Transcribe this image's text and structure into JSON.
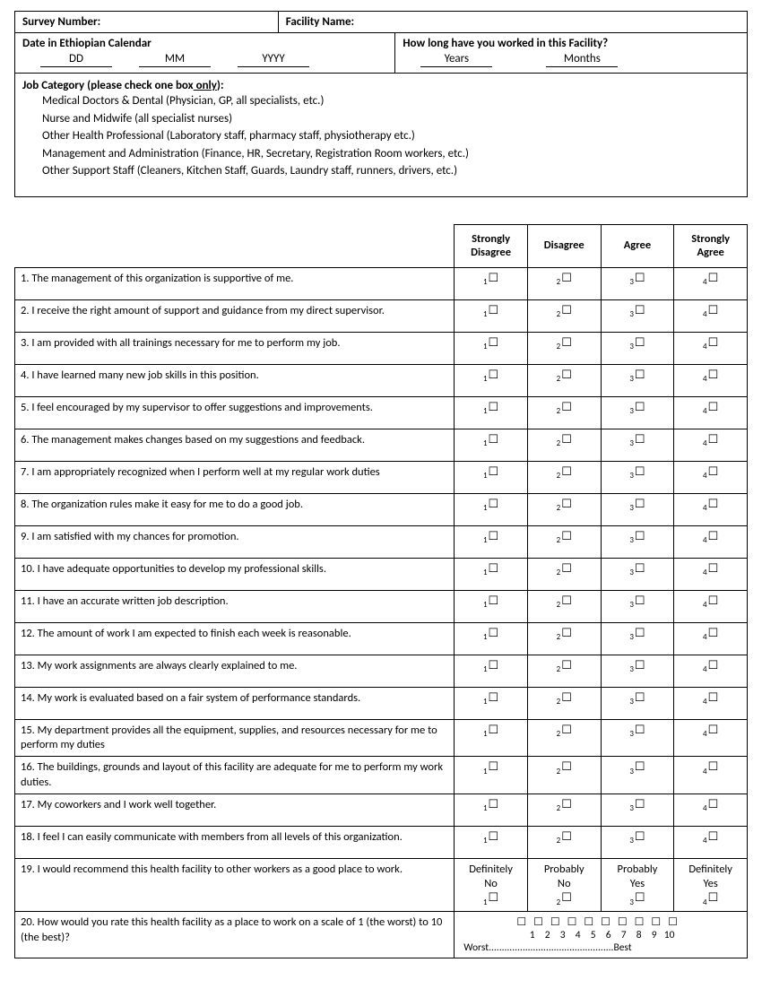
{
  "header": {
    "survey_number_label": "Survey Number:",
    "facility_name_label": "Facility Name:",
    "date_label": "Date in Ethiopian Calendar",
    "dd": "DD",
    "mm": "MM",
    "yyyy": "YYYY",
    "work_label": "How long have you worked in this Facility?",
    "years": "Years",
    "months": "Months",
    "job_category_prefix": "Job Category  (please check one box",
    "job_category_only": " only",
    "job_category_suffix": "):",
    "job_options": [
      "Medical Doctors & Dental (Physician, GP, all specialists, etc.)",
      "Nurse and Midwife (all specialist nurses)",
      "Other Health Professional (Laboratory staff, pharmacy staff, physiotherapy etc.)",
      "Management and Administration (Finance, HR, Secretary, Registration Room workers, etc.)",
      "Other Support Staff (Cleaners, Kitchen Staff, Guards, Laundry staff, runners, drivers, etc.)"
    ]
  },
  "columns": [
    "Strongly Disagree",
    "Disagree",
    "Agree",
    "Strongly Agree"
  ],
  "questions": [
    "1. The management of this organization is supportive of me.",
    "2. I receive the right amount of support and guidance from my direct supervisor.",
    "3. I am provided with all trainings necessary for me to perform my job.",
    "4. I have learned many new job skills in this position.",
    "5. I feel encouraged by my supervisor to offer suggestions and improvements.",
    "6. The management makes changes based on my suggestions and feedback.",
    "7. I am appropriately recognized when I perform well at my regular work duties",
    "8. The organization rules make it easy for me to do a good job.",
    "9. I am satisfied with my chances for promotion.",
    "10. I have adequate opportunities to develop my professional skills.",
    "11. I have an accurate written job description.",
    "12. The amount of work I am expected to finish each week is reasonable.",
    "13. My work assignments are always clearly explained to me.",
    "14. My work is evaluated based on a fair system of performance standards.",
    "15. My department provides all the equipment, supplies, and resources necessary for me to perform my duties",
    "16. The buildings, grounds and layout of this facility are adequate for me to perform my work duties.",
    "17. My coworkers and I work well together.",
    "18. I feel I can easily communicate with members from all levels of this organization."
  ],
  "q19": {
    "text": "19. I would recommend this health facility to other workers as a good place to work.",
    "options": [
      "Definitely No",
      "Probably No",
      "Probably Yes",
      "Definitely Yes"
    ]
  },
  "q20": {
    "text": "20. How would you rate this health facility as a place to work on a scale of 1 (the worst) to 10 (the best)?",
    "worst": "Worst",
    "best": "Best"
  }
}
